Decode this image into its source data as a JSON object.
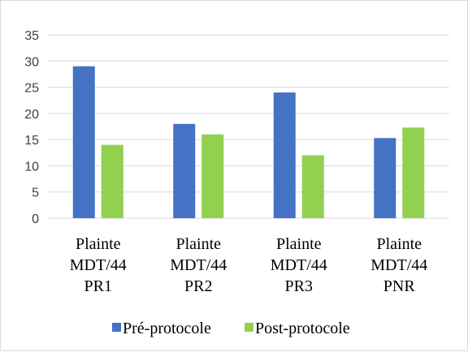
{
  "chart_data": {
    "type": "bar",
    "categories": [
      [
        "Plainte",
        "MDT/44",
        "PR1"
      ],
      [
        "Plainte",
        "MDT/44",
        "PR2"
      ],
      [
        "Plainte",
        "MDT/44",
        "PR3"
      ],
      [
        "Plainte",
        "MDT/44",
        "PNR"
      ]
    ],
    "series": [
      {
        "name": "Pré-protocole",
        "color": "#4472C4",
        "values": [
          29,
          18,
          24,
          15.3
        ]
      },
      {
        "name": "Post-protocole",
        "color": "#92D050",
        "values": [
          14,
          16,
          12,
          17.3
        ]
      }
    ],
    "yticks": [
      "0",
      "5",
      "10",
      "15",
      "20",
      "25",
      "30",
      "35"
    ],
    "ylim": [
      0,
      35
    ],
    "grid": true,
    "legend_position": "bottom",
    "title": "",
    "xlabel": "",
    "ylabel": ""
  }
}
